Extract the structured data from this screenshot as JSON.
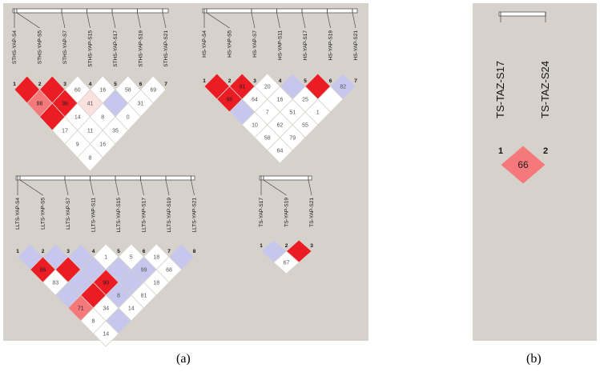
{
  "captions": {
    "a": "(a)",
    "b": "(b)"
  },
  "colors": {
    "panel_bg": "#d6d2cb",
    "red": "#ec1c24",
    "mid_red": "#f5787a",
    "light_pink": "#fbe0e0",
    "lavender": "#c7c7ee",
    "white": "#ffffff"
  },
  "plots": [
    {
      "id": "sths",
      "panel": "a",
      "labels": [
        "STHS-YAP-S4",
        "STHS-YAP-S5",
        "STHS-YAP-S7",
        "STHS-YAP-S15",
        "STHS-YAP-S17",
        "STHS-YAP-S19",
        "STHS-YAP-S21"
      ],
      "numbers": [
        "1",
        "2",
        "3",
        "4",
        "5",
        "6",
        "7"
      ],
      "cells": [
        [
          "red",
          "red",
          "white",
          "white",
          "white",
          "white"
        ],
        [
          "mid_red",
          "red",
          "light_pink",
          "lavender",
          "white"
        ],
        [
          "red",
          "white",
          "white",
          "white"
        ],
        [
          "white",
          "white",
          "white"
        ],
        [
          "white",
          "white"
        ],
        [
          "white"
        ]
      ],
      "values": [
        [
          "",
          "",
          "60",
          "16",
          "58",
          "69"
        ],
        [
          "88",
          "36",
          "41",
          "",
          "31"
        ],
        [
          "",
          "14",
          "8",
          "0"
        ],
        [
          "17",
          "11",
          "35"
        ],
        [
          "9",
          "16"
        ],
        [
          "8"
        ]
      ]
    },
    {
      "id": "hs",
      "panel": "a",
      "labels": [
        "HS-YAP-S4",
        "HS-YAP-S5",
        "HS-YAP-S7",
        "HS-YAP-S11",
        "HS-YAP-S17",
        "HS-YAP-S19",
        "HS-YAP-S21"
      ],
      "numbers": [
        "1",
        "2",
        "3",
        "4",
        "5",
        "6",
        "7"
      ],
      "cells": [
        [
          "red",
          "red",
          "white",
          "lavender",
          "red",
          "lavender"
        ],
        [
          "red",
          "white",
          "white",
          "white",
          "white"
        ],
        [
          "lavender",
          "white",
          "white",
          "white"
        ],
        [
          "white",
          "white",
          "white"
        ],
        [
          "white",
          "white"
        ],
        [
          "white"
        ]
      ],
      "values": [
        [
          "",
          "91",
          "20",
          "",
          "",
          "82"
        ],
        [
          "95",
          "64",
          "16",
          "25",
          ""
        ],
        [
          "",
          "7",
          "51",
          "1"
        ],
        [
          "10",
          "62",
          "55"
        ],
        [
          "58",
          "79"
        ],
        [
          "64"
        ]
      ]
    },
    {
      "id": "llts",
      "panel": "a",
      "labels": [
        "LLTS-YAP-S4",
        "LLTS-YAP-S5",
        "LLTS-YAP-S7",
        "LLTS-YAP-S11",
        "LLTS-YAP-S15",
        "LLTS-YAP-S17",
        "LLTS-YAP-S19",
        "LLTS-YAP-S21"
      ],
      "numbers": [
        "1",
        "2",
        "3",
        "4",
        "5",
        "6",
        "7",
        "8"
      ],
      "cells": [
        [
          "lavender",
          "lavender",
          "lavender",
          "white",
          "white",
          "white",
          "lavender"
        ],
        [
          "red",
          "red",
          "lavender",
          "lavender",
          "lavender",
          "white"
        ],
        [
          "white",
          "lavender",
          "red",
          "lavender",
          "white"
        ],
        [
          "lavender",
          "red",
          "lavender",
          "white"
        ],
        [
          "mid_red",
          "white",
          "white"
        ],
        [
          "white",
          "lavender"
        ],
        [
          "white"
        ]
      ],
      "values": [
        [
          "",
          "",
          "",
          "1",
          "5",
          "18",
          ""
        ],
        [
          "86",
          "",
          "",
          "",
          "99",
          "68"
        ],
        [
          "83",
          "",
          "90",
          "",
          "18"
        ],
        [
          "",
          "",
          "8",
          "81"
        ],
        [
          "71",
          "34",
          "14"
        ],
        [
          "8",
          ""
        ],
        [
          "14"
        ]
      ]
    },
    {
      "id": "ts3",
      "panel": "a",
      "labels": [
        "TS-YAP-S17",
        "TS-YAP-S19",
        "TS-YAP-S21"
      ],
      "numbers": [
        "1",
        "2",
        "3"
      ],
      "cells": [
        [
          "lavender",
          "red"
        ],
        [
          "white"
        ]
      ],
      "values": [
        [
          "",
          ""
        ],
        [
          "67"
        ]
      ]
    },
    {
      "id": "taz",
      "panel": "b",
      "labels": [
        "TS-TAZ-S17",
        "TS-TAZ-S24"
      ],
      "numbers": [
        "1",
        "2"
      ],
      "cells": [
        [
          "mid_red"
        ]
      ],
      "values": [
        [
          "66"
        ]
      ]
    }
  ]
}
